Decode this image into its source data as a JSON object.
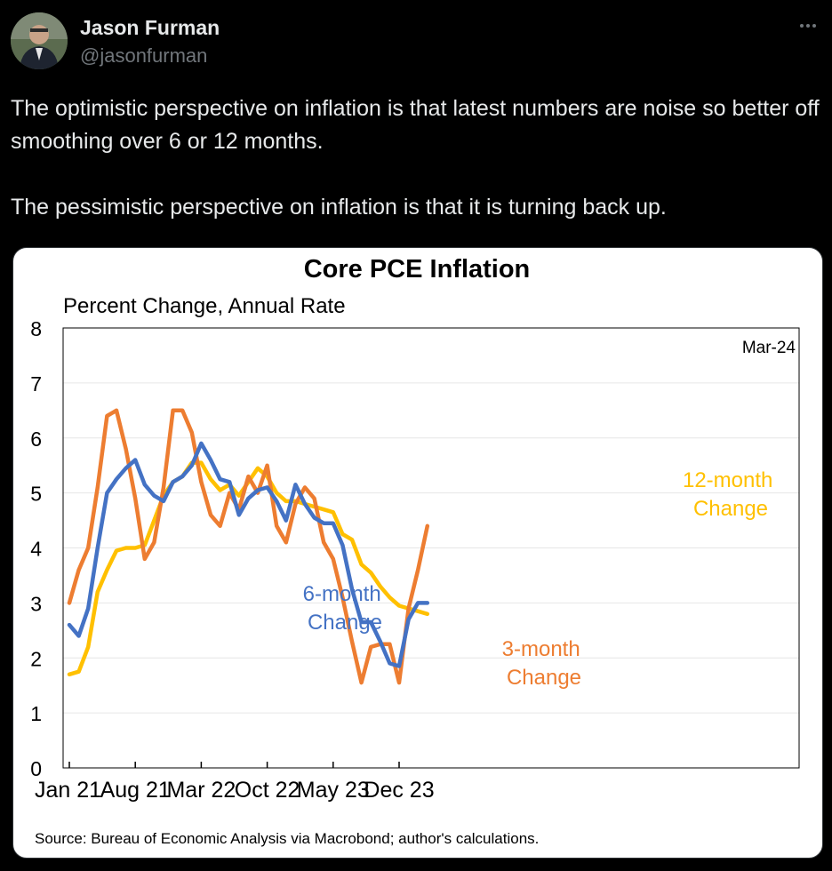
{
  "tweet": {
    "author_name": "Jason Furman",
    "handle": "@jasonfurman",
    "text_paragraph_1": "The optimistic perspective on inflation is that latest numbers are noise so better off smoothing over 6 or 12 months.",
    "text_paragraph_2": "The pessimistic perspective on inflation is that it is turning back up."
  },
  "colors": {
    "background": "#000000",
    "text": "#e7e9ea",
    "muted": "#71767b",
    "series_3m": "#ed7d31",
    "series_6m": "#4472c4",
    "series_12m": "#ffc000"
  },
  "icons": {
    "more": "more-horizontal-icon"
  },
  "chart_data": {
    "type": "line",
    "title": "Core PCE Inflation",
    "subtitle": "Percent Change, Annual Rate",
    "date_stamp": "Mar-24",
    "source": "Source: Bureau of Economic Analysis via Macrobond; author's calculations.",
    "ylim": [
      0,
      8
    ],
    "yticks": [
      "0",
      "1",
      "2",
      "3",
      "4",
      "5",
      "6",
      "7",
      "8"
    ],
    "xtick_labels": [
      "Jan 21",
      "Aug 21",
      "Mar 22",
      "Oct 22",
      "May 23",
      "Dec 23"
    ],
    "xtick_indices": [
      0,
      7,
      14,
      21,
      28,
      35
    ],
    "x": [
      "Jan 21",
      "Feb 21",
      "Mar 21",
      "Apr 21",
      "May 21",
      "Jun 21",
      "Jul 21",
      "Aug 21",
      "Sep 21",
      "Oct 21",
      "Nov 21",
      "Dec 21",
      "Jan 22",
      "Feb 22",
      "Mar 22",
      "Apr 22",
      "May 22",
      "Jun 22",
      "Jul 22",
      "Aug 22",
      "Sep 22",
      "Oct 22",
      "Nov 22",
      "Dec 22",
      "Jan 23",
      "Feb 23",
      "Mar 23",
      "Apr 23",
      "May 23",
      "Jun 23",
      "Jul 23",
      "Aug 23",
      "Sep 23",
      "Oct 23",
      "Nov 23",
      "Dec 23",
      "Jan 24",
      "Feb 24",
      "Mar 24"
    ],
    "series": [
      {
        "name": "3-month Change",
        "label_line1": "3-month",
        "label_line2": "Change",
        "color": "#ed7d31",
        "values": [
          3.0,
          3.6,
          4.0,
          5.1,
          6.4,
          6.5,
          5.8,
          4.9,
          3.8,
          4.1,
          5.1,
          6.5,
          6.5,
          6.1,
          5.2,
          4.6,
          4.4,
          5.0,
          4.7,
          5.3,
          5.0,
          5.5,
          4.4,
          4.1,
          4.8,
          5.1,
          4.9,
          4.1,
          3.8,
          3.1,
          2.3,
          1.55,
          2.2,
          2.25,
          2.25,
          1.55,
          2.9,
          3.6,
          4.4
        ]
      },
      {
        "name": "6-month Change",
        "label_line1": "6-month",
        "label_line2": "Change",
        "color": "#4472c4",
        "values": [
          2.6,
          2.4,
          2.9,
          4.0,
          5.0,
          5.25,
          5.45,
          5.6,
          5.15,
          4.95,
          4.85,
          5.2,
          5.3,
          5.5,
          5.9,
          5.6,
          5.25,
          5.2,
          4.6,
          4.9,
          5.05,
          5.1,
          4.85,
          4.5,
          5.15,
          4.8,
          4.55,
          4.45,
          4.45,
          4.05,
          3.25,
          2.65,
          2.65,
          2.3,
          1.9,
          1.85,
          2.7,
          3.0,
          3.0
        ]
      },
      {
        "name": "12-month Change",
        "label_line1": "12-month",
        "label_line2": "Change",
        "color": "#ffc000",
        "values": [
          1.7,
          1.75,
          2.2,
          3.2,
          3.6,
          3.95,
          4.0,
          4.0,
          4.05,
          4.5,
          4.95,
          5.2,
          5.3,
          5.55,
          5.55,
          5.25,
          5.05,
          5.15,
          4.95,
          5.2,
          5.45,
          5.3,
          5.0,
          4.85,
          4.85,
          4.8,
          4.75,
          4.7,
          4.65,
          4.25,
          4.15,
          3.7,
          3.55,
          3.3,
          3.1,
          2.95,
          2.9,
          2.85,
          2.8
        ]
      }
    ]
  }
}
